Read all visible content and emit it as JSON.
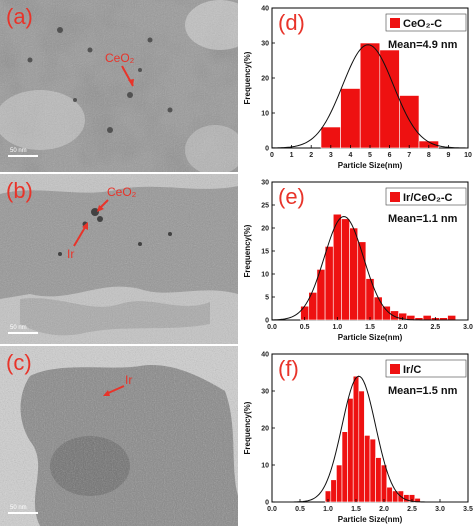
{
  "tem_panels": [
    {
      "tag": "(a)",
      "labels": [
        "CeO₂"
      ],
      "scale": "50 nm"
    },
    {
      "tag": "(b)",
      "labels": [
        "CeO₂",
        "Ir"
      ],
      "scale": "50 nm"
    },
    {
      "tag": "(c)",
      "labels": [
        "Ir"
      ],
      "scale": "50 nm"
    }
  ],
  "chart_data": [
    {
      "type": "bar",
      "tag": "(d)",
      "legend": "CeO₂-C",
      "annotation": "Mean=4.9 nm",
      "xlabel": "Particle Size(nm)",
      "ylabel": "Frequency(%)",
      "xlim": [
        0,
        10
      ],
      "ylim": [
        0,
        40
      ],
      "xticks": [
        0,
        1,
        2,
        3,
        4,
        5,
        6,
        7,
        8,
        9,
        10
      ],
      "yticks": [
        0,
        10,
        20,
        30,
        40
      ],
      "bar_width": 1,
      "x": [
        3,
        4,
        5,
        6,
        7,
        8
      ],
      "values": [
        6,
        17,
        30,
        28,
        15,
        2
      ],
      "fit": {
        "mean": 4.9,
        "sd": 1.3,
        "peak": 29.5
      },
      "colors": {
        "bar": "#ee1111",
        "fit": "#111111"
      }
    },
    {
      "type": "bar",
      "tag": "(e)",
      "legend": "Ir/CeO₂-C",
      "annotation": "Mean=1.1 nm",
      "xlabel": "Particle Size(nm)",
      "ylabel": "Frequency(%)",
      "xlim": [
        0,
        3.0
      ],
      "ylim": [
        0,
        30
      ],
      "xticks": [
        0.0,
        0.5,
        1.0,
        1.5,
        2.0,
        2.5,
        3.0
      ],
      "yticks": [
        0,
        5,
        10,
        15,
        20,
        25,
        30
      ],
      "bar_width": 0.125,
      "x": [
        0.5,
        0.625,
        0.75,
        0.875,
        1.0,
        1.125,
        1.25,
        1.375,
        1.5,
        1.625,
        1.75,
        1.875,
        2.0,
        2.125,
        2.25,
        2.375,
        2.5,
        2.625,
        2.75
      ],
      "values": [
        3,
        6,
        11,
        16,
        23,
        22,
        20,
        17,
        9,
        5,
        3,
        2,
        1.5,
        1,
        0.5,
        1,
        0.5,
        0.5,
        1
      ],
      "fit": {
        "mean": 1.1,
        "sd": 0.3,
        "peak": 22.5
      },
      "colors": {
        "bar": "#ee1111",
        "fit": "#111111"
      }
    },
    {
      "type": "bar",
      "tag": "(f)",
      "legend": "Ir/C",
      "annotation": "Mean=1.5 nm",
      "xlabel": "Particle Size(nm)",
      "ylabel": "Frequency(%)",
      "xlim": [
        0,
        3.5
      ],
      "ylim": [
        0,
        40
      ],
      "xticks": [
        0.0,
        0.5,
        1.0,
        1.5,
        2.0,
        2.5,
        3.0,
        3.5
      ],
      "yticks": [
        0,
        10,
        20,
        30,
        40
      ],
      "bar_width": 0.1,
      "x": [
        1.0,
        1.1,
        1.2,
        1.3,
        1.4,
        1.5,
        1.6,
        1.7,
        1.8,
        1.9,
        2.0,
        2.1,
        2.2,
        2.3,
        2.4,
        2.5,
        2.6
      ],
      "values": [
        3,
        6,
        10,
        19,
        28,
        34,
        30,
        18,
        17,
        12,
        10,
        4,
        3,
        3,
        2,
        2,
        1
      ],
      "fit": {
        "mean": 1.55,
        "sd": 0.3,
        "peak": 34
      },
      "colors": {
        "bar": "#ee1111",
        "fit": "#111111"
      }
    }
  ]
}
